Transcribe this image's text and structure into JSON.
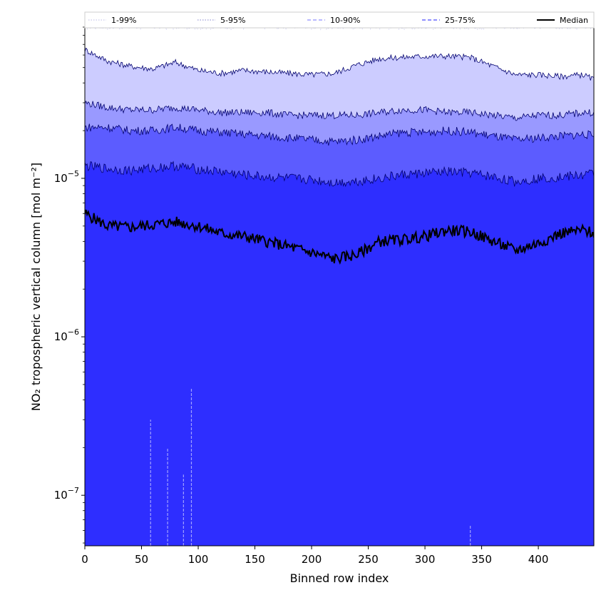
{
  "chart_data": {
    "type": "area",
    "xlabel": "Binned row index",
    "ylabel": "NO₂ tropospheric vertical column [mol m⁻²]",
    "xlim": [
      0,
      449
    ],
    "ylim": [
      4.8e-08,
      9e-05
    ],
    "yscale": "log",
    "x_ticks": [
      0,
      50,
      100,
      150,
      200,
      250,
      300,
      350,
      400
    ],
    "y_ticks": [
      {
        "value": 1e-07,
        "base": "10",
        "exp": "−7"
      },
      {
        "value": 1e-06,
        "base": "10",
        "exp": "−6"
      },
      {
        "value": 1e-05,
        "base": "10",
        "exp": "−5"
      }
    ],
    "grid": false,
    "legend_position": "top",
    "x": [
      0,
      20,
      40,
      60,
      80,
      100,
      120,
      140,
      160,
      180,
      200,
      220,
      240,
      260,
      280,
      300,
      320,
      340,
      360,
      380,
      400,
      420,
      440,
      449
    ],
    "bands": [
      {
        "name": "1-99%",
        "fill": "#ffffff",
        "line_color": "#c8c8ec",
        "linestyle": "dotted",
        "lower": [
          4.8e-08,
          4.8e-08,
          4.8e-08,
          4.8e-08,
          4.8e-08,
          4.8e-08,
          4.8e-08,
          4.8e-08,
          4.8e-08,
          4.8e-08,
          4.8e-08,
          4.8e-08,
          4.8e-08,
          4.8e-08,
          4.8e-08,
          4.8e-08,
          4.8e-08,
          4.8e-08,
          4.8e-08,
          4.8e-08,
          4.8e-08,
          4.8e-08,
          4.8e-08,
          4.8e-08
        ],
        "upper": [
          9e-05,
          9e-05,
          9e-05,
          9e-05,
          9e-05,
          9e-05,
          9e-05,
          9e-05,
          9e-05,
          9e-05,
          9e-05,
          9e-05,
          9e-05,
          9e-05,
          9e-05,
          9e-05,
          9e-05,
          9e-05,
          9e-05,
          9e-05,
          9e-05,
          9e-05,
          9e-05,
          9e-05
        ]
      },
      {
        "name": "5-95%",
        "fill": "#ccccff",
        "line_color": "#00006e",
        "linestyle": "solid",
        "lower": [
          4.8e-08,
          4.8e-08,
          4.8e-08,
          4.8e-08,
          4.8e-08,
          4.8e-08,
          4.8e-08,
          4.8e-08,
          4.8e-08,
          4.8e-08,
          4.8e-08,
          4.8e-08,
          4.8e-08,
          4.8e-08,
          4.8e-08,
          4.8e-08,
          4.8e-08,
          4.8e-08,
          4.8e-08,
          4.8e-08,
          4.8e-08,
          4.8e-08,
          4.8e-08,
          4.8e-08
        ],
        "upper": [
          6.5e-05,
          5.5e-05,
          5.1e-05,
          4.9e-05,
          5.4e-05,
          4.8e-05,
          4.6e-05,
          4.8e-05,
          4.7e-05,
          4.6e-05,
          4.5e-05,
          4.6e-05,
          5.2e-05,
          5.7e-05,
          5.8e-05,
          5.9e-05,
          5.9e-05,
          5.8e-05,
          5.1e-05,
          4.5e-05,
          4.5e-05,
          4.4e-05,
          4.5e-05,
          4.2e-05
        ]
      },
      {
        "name": "10-90%",
        "fill": "#9999ff",
        "line_color": "#00006e",
        "linestyle": "solid",
        "lower": [
          4.8e-08,
          4.8e-08,
          4.8e-08,
          4.8e-08,
          4.8e-08,
          4.8e-08,
          4.8e-08,
          4.8e-08,
          4.8e-08,
          4.8e-08,
          4.8e-08,
          4.8e-08,
          4.8e-08,
          4.8e-08,
          4.8e-08,
          4.8e-08,
          4.8e-08,
          4.8e-08,
          4.8e-08,
          4.8e-08,
          4.8e-08,
          4.8e-08,
          4.8e-08,
          4.8e-08
        ],
        "upper": [
          3e-05,
          2.8e-05,
          2.7e-05,
          2.7e-05,
          2.8e-05,
          2.7e-05,
          2.6e-05,
          2.6e-05,
          2.6e-05,
          2.5e-05,
          2.5e-05,
          2.5e-05,
          2.5e-05,
          2.6e-05,
          2.7e-05,
          2.7e-05,
          2.6e-05,
          2.6e-05,
          2.5e-05,
          2.4e-05,
          2.5e-05,
          2.5e-05,
          2.6e-05,
          2.6e-05
        ]
      },
      {
        "name": "25-75%",
        "fill": "#5c5cff",
        "line_color": "#00006e",
        "linestyle": "solid",
        "lower": [
          4.8e-08,
          4.8e-08,
          4.8e-08,
          4.8e-08,
          4.8e-08,
          4.8e-08,
          4.8e-08,
          4.8e-08,
          4.8e-08,
          4.8e-08,
          4.8e-08,
          4.8e-08,
          4.8e-08,
          4.8e-08,
          4.8e-08,
          4.8e-08,
          4.8e-08,
          4.8e-08,
          4.8e-08,
          4.8e-08,
          4.8e-08,
          4.8e-08,
          4.8e-08,
          4.8e-08
        ],
        "upper": [
          2.1e-05,
          2.1e-05,
          2e-05,
          2e-05,
          2.1e-05,
          2e-05,
          1.95e-05,
          1.9e-05,
          1.85e-05,
          1.8e-05,
          1.75e-05,
          1.7e-05,
          1.75e-05,
          1.85e-05,
          1.95e-05,
          1.95e-05,
          2e-05,
          1.95e-05,
          1.85e-05,
          1.75e-05,
          1.8e-05,
          1.85e-05,
          1.9e-05,
          1.85e-05
        ]
      },
      {
        "name": "",
        "fill": "#2e2eff",
        "line_color": "#00006e",
        "linestyle": "solid",
        "lower": [
          4.8e-08,
          4.8e-08,
          4.8e-08,
          4.8e-08,
          4.8e-08,
          4.8e-08,
          4.8e-08,
          4.8e-08,
          4.8e-08,
          4.8e-08,
          4.8e-08,
          4.8e-08,
          4.8e-08,
          4.8e-08,
          4.8e-08,
          4.8e-08,
          4.8e-08,
          4.8e-08,
          4.8e-08,
          4.8e-08,
          4.8e-08,
          4.8e-08,
          4.8e-08,
          4.8e-08
        ],
        "upper": [
          1.2e-05,
          1.15e-05,
          1.12e-05,
          1.16e-05,
          1.2e-05,
          1.14e-05,
          1.1e-05,
          1.05e-05,
          1.02e-05,
          1e-05,
          9.8e-06,
          9.4e-06,
          9.6e-06,
          1e-05,
          1.05e-05,
          1.08e-05,
          1.1e-05,
          1.08e-05,
          1.02e-05,
          9.5e-06,
          1e-05,
          1.02e-05,
          1.05e-05,
          1.08e-05
        ]
      }
    ],
    "median": {
      "name": "Median",
      "color": "#000000",
      "values": [
        6e-06,
        5e-06,
        4.9e-06,
        5.1e-06,
        5.3e-06,
        5e-06,
        4.5e-06,
        4.3e-06,
        4e-06,
        3.7e-06,
        3.4e-06,
        3.1e-06,
        3.3e-06,
        4e-06,
        4.1e-06,
        4.3e-06,
        4.7e-06,
        4.6e-06,
        4e-06,
        3.5e-06,
        3.9e-06,
        4.5e-06,
        4.7e-06,
        4.5e-06
      ]
    },
    "vlines": [
      {
        "x": 58,
        "y_top": 3e-07
      },
      {
        "x": 73,
        "y_top": 2e-07
      },
      {
        "x": 87,
        "y_top": 1.35e-07
      },
      {
        "x": 94,
        "y_top": 4.7e-07
      },
      {
        "x": 340,
        "y_top": 6.5e-08
      }
    ],
    "legend": [
      {
        "label": "1-99%",
        "color": "#c8c8ec",
        "linestyle": "dotted"
      },
      {
        "label": "5-95%",
        "color": "#9c9cd8",
        "linestyle": "dotted"
      },
      {
        "label": "10-90%",
        "color": "#8f8fff",
        "linestyle": "dashed"
      },
      {
        "label": "25-75%",
        "color": "#4c4cff",
        "linestyle": "dashed"
      },
      {
        "label": "Median",
        "color": "#000000",
        "linestyle": "solid"
      }
    ]
  }
}
